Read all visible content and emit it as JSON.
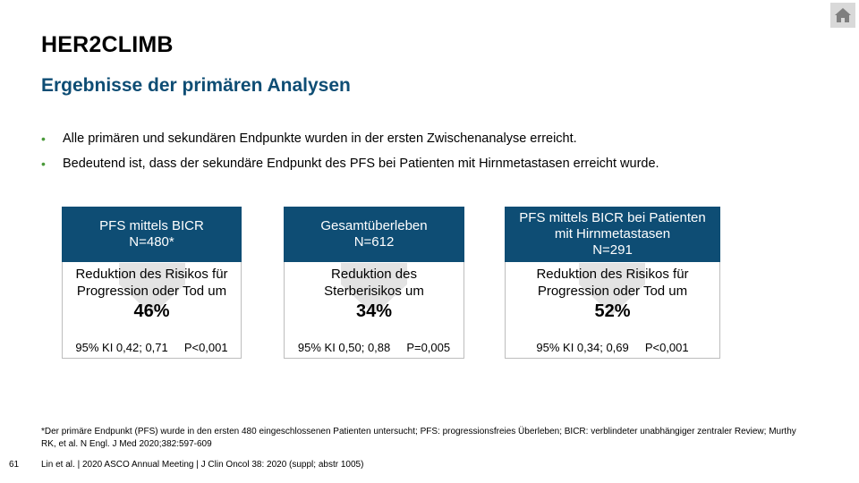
{
  "slide": {
    "title": "HER2CLIMB",
    "subtitle": "Ergebnisse der primären Analysen",
    "home_icon": "home-icon",
    "accent_color": "#0e4d74",
    "bullet_color": "#4a9a3a"
  },
  "bullets": [
    "Alle primären und sekundären Endpunkte wurden in der ersten Zwischenanalyse erreicht.",
    "Bedeutend ist, dass der sekundäre Endpunkt des PFS bei Patienten mit Hirnmetastasen erreicht wurde."
  ],
  "cards": [
    {
      "head_line1": "PFS mittels BICR",
      "head_line2": "N=480*",
      "head_line3": "",
      "desc_line1": "Reduktion des Risikos für",
      "desc_line2": "Progression oder Tod um",
      "percent": "46%",
      "ci": "95% KI 0,42; 0,71",
      "p": "P<0,001"
    },
    {
      "head_line1": "Gesamtüberleben",
      "head_line2": "N=612",
      "head_line3": "",
      "desc_line1": "Reduktion des",
      "desc_line2": "Sterberisikos um",
      "percent": "34%",
      "ci": "95% KI 0,50; 0,88",
      "p": "P=0,005"
    },
    {
      "head_line1": "PFS mittels BICR bei Patienten",
      "head_line2": "mit Hirnmetastasen",
      "head_line3": "N=291",
      "desc_line1": "Reduktion des Risikos für",
      "desc_line2": "Progression oder Tod um",
      "percent": "52%",
      "ci": "95% KI 0,34; 0,69",
      "p": "P<0,001"
    }
  ],
  "footnote": "*Der primäre Endpunkt (PFS) wurde in den ersten 480 eingeschlossenen Patienten untersucht; PFS: progressionsfreies Überleben; BICR: verblindeter unabhängiger zentraler Review; Murthy RK, et al. N Engl. J Med 2020;382:597-609",
  "page_number": "61",
  "source": "Lin et al. | 2020 ASCO Annual Meeting | J Clin Oncol 38: 2020 (suppl; abstr 1005)"
}
